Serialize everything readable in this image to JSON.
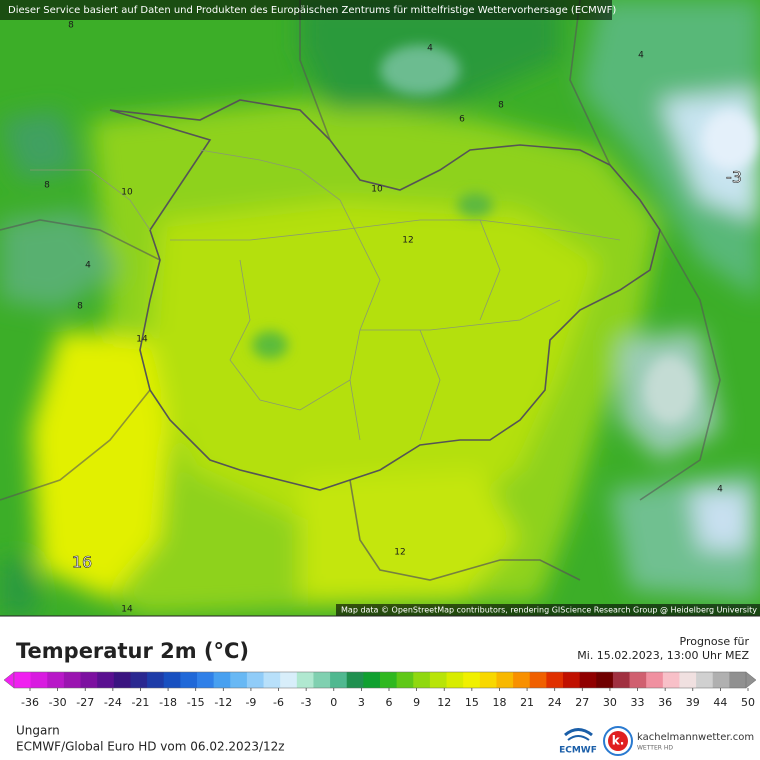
{
  "header": {
    "notice": "Dieser Service basiert auf Daten und Produkten des Europäischen Zentrums für mittelfristige Wettervorhersage (ECMWF)"
  },
  "map": {
    "contour_labels": [
      8,
      4,
      4,
      6,
      8,
      8,
      10,
      10,
      12,
      4,
      8,
      14,
      -3,
      12,
      4,
      16,
      14
    ],
    "attribution": "Map data © OpenStreetMap contributors, rendering GIScience Research Group @ Heidelberg University"
  },
  "legend": {
    "title": "Temperatur 2m (°C)",
    "forecast_label": "Prognose für",
    "forecast_time": "Mi. 15.02.2023, 13:00 Uhr MEZ",
    "ticks": [
      -36,
      -30,
      -27,
      -24,
      -21,
      -18,
      -15,
      -12,
      -9,
      -6,
      -3,
      0,
      3,
      6,
      9,
      12,
      15,
      18,
      21,
      24,
      27,
      30,
      33,
      36,
      39,
      44,
      50
    ],
    "colors": [
      "#f020f0",
      "#d81ce0",
      "#b818c8",
      "#9a14b0",
      "#7c10a0",
      "#5a1090",
      "#3a1480",
      "#2a2890",
      "#1e3ca8",
      "#1850c0",
      "#2068d8",
      "#3080e8",
      "#48a0f0",
      "#68b8f4",
      "#90ccf8",
      "#b8e0fa",
      "#d8eefa",
      "#b0e8d0",
      "#80d0b0",
      "#50b890",
      "#209050",
      "#10a030",
      "#30b820",
      "#60c818",
      "#90d810",
      "#b8e408",
      "#d8ec00",
      "#f0f000",
      "#f8d800",
      "#f8b800",
      "#f89000",
      "#f06000",
      "#e03000",
      "#c01000",
      "#900000",
      "#700000",
      "#a03040",
      "#d06070",
      "#f090a0",
      "#f8c0c8",
      "#f0e0e0",
      "#d0d0d0",
      "#b0b0b0",
      "#909090"
    ]
  },
  "footer": {
    "region": "Ungarn",
    "model": "ECMWF/Global Euro HD vom 06.02.2023/12z",
    "logo_left": "ECMWF",
    "logo_right": "kachelmannwetter.com",
    "logo_right_sub": "WETTER HD"
  }
}
